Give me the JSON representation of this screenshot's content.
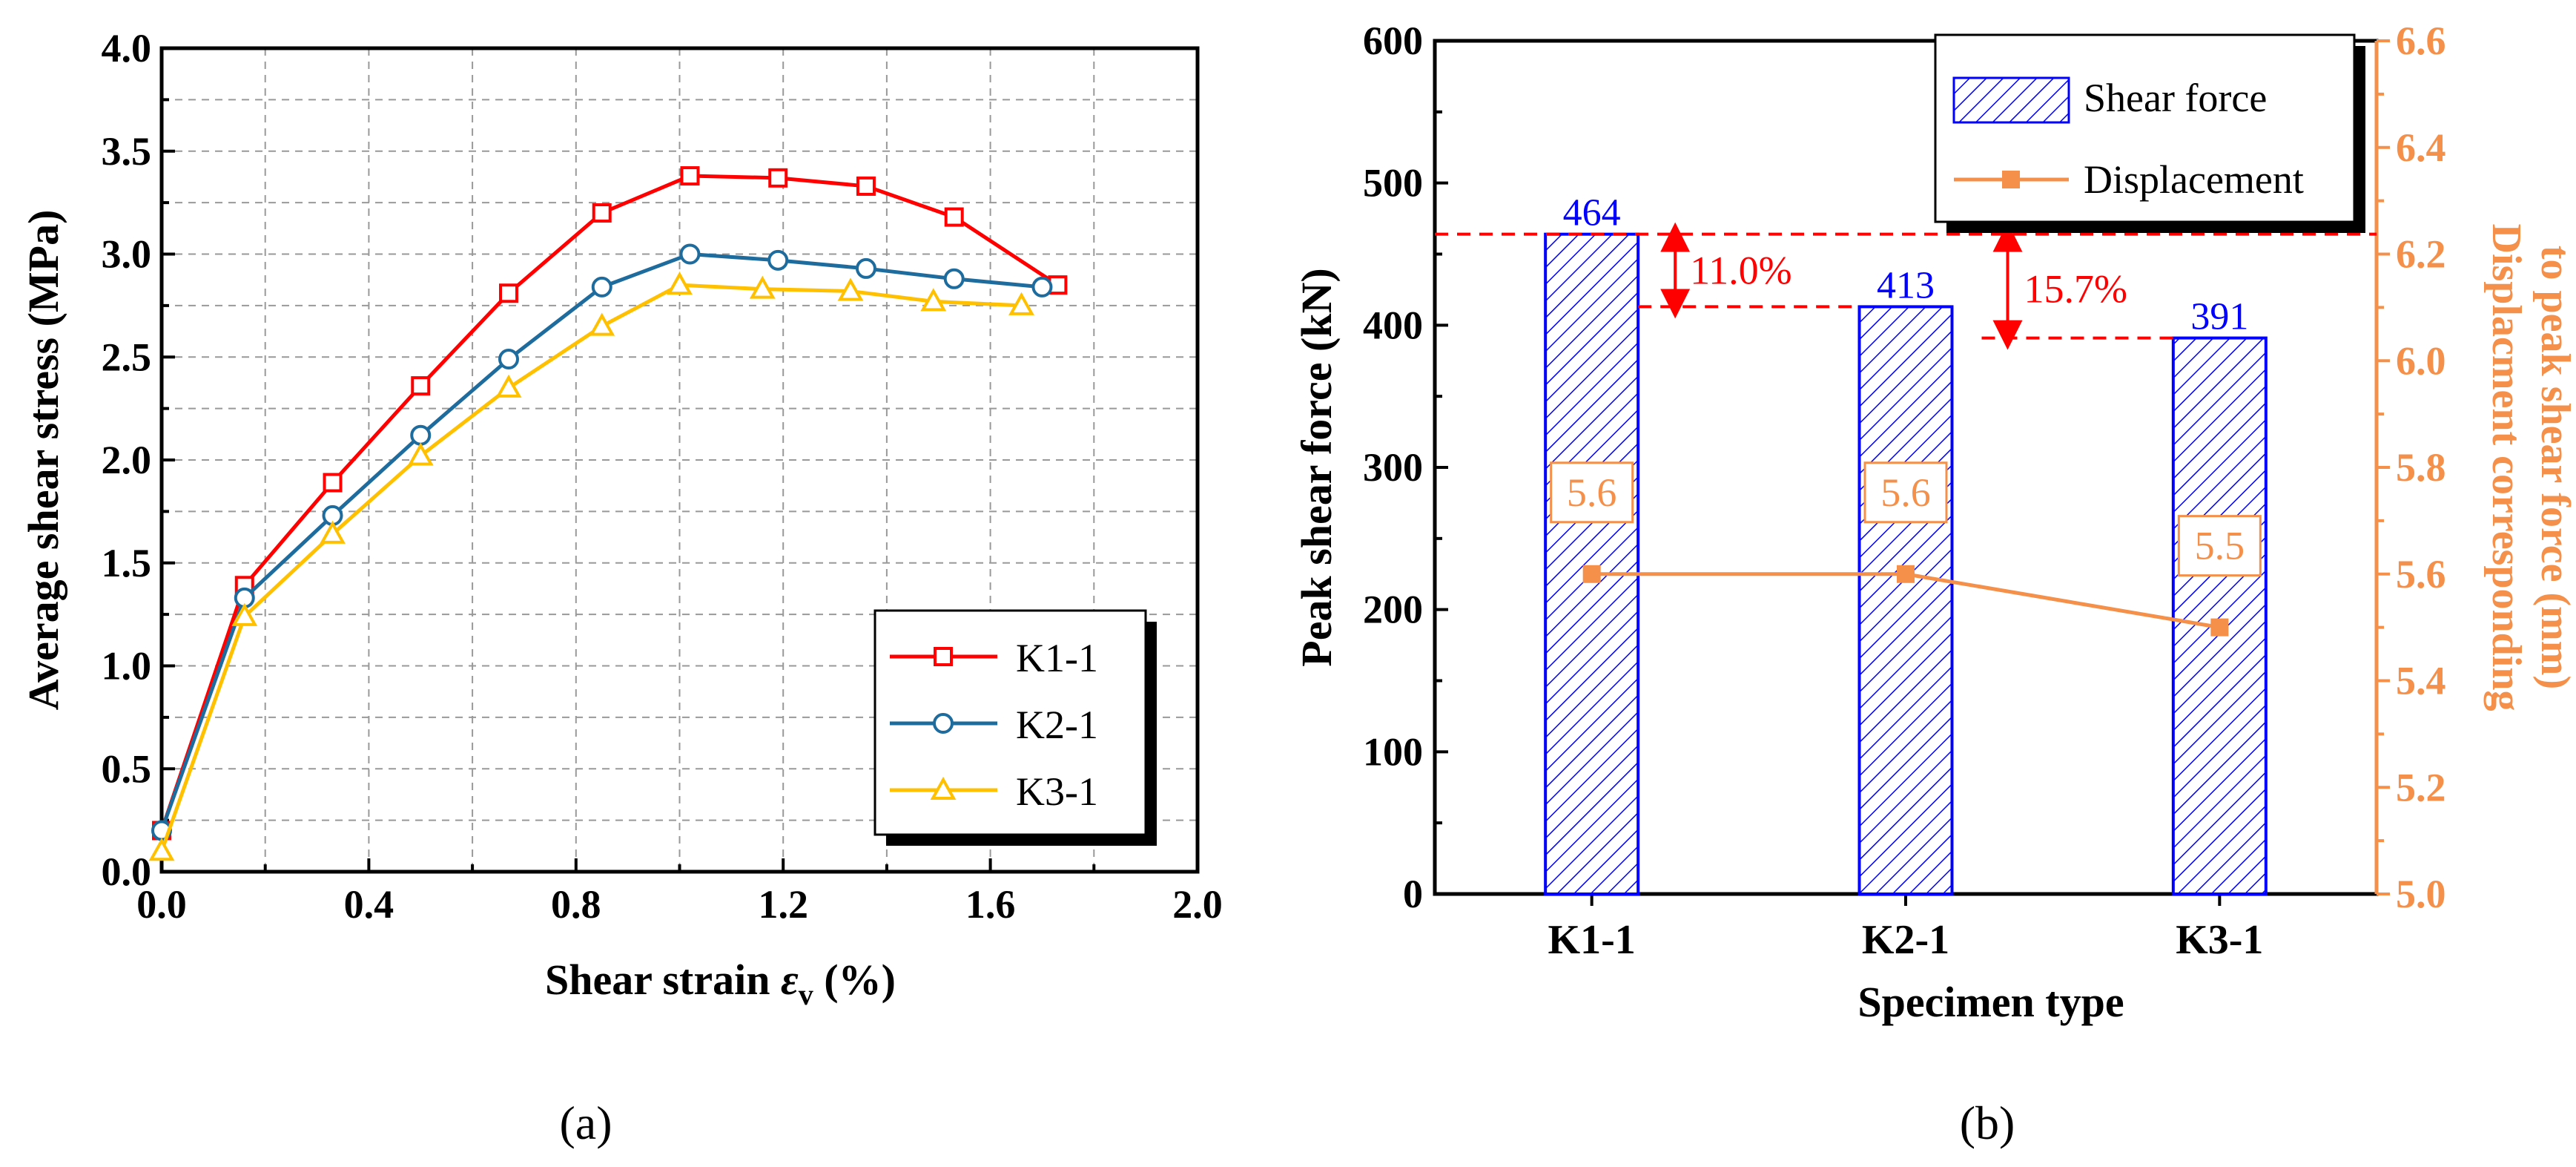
{
  "colors": {
    "k1": "#ff0000",
    "k2": "#1e6b9e",
    "k3": "#ffc000",
    "bar": "#0000ff",
    "disp": "#f4904a",
    "pct": "#ff0000",
    "grid": "#999999"
  },
  "chart_data": [
    {
      "panel": "(a)",
      "type": "line",
      "xlabel_prefix": "Shear strain ",
      "xlabel_symbol": "ε",
      "xlabel_sub": "v",
      "xlabel_suffix": " (%)",
      "ylabel": "Average shear stress (MPa)",
      "xlim": [
        0,
        2.0
      ],
      "ylim": [
        0,
        4.0
      ],
      "xticks": [
        "0.0",
        "0.4",
        "0.8",
        "1.2",
        "1.6",
        "2.0"
      ],
      "yticks": [
        "0.0",
        "0.5",
        "1.0",
        "1.5",
        "2.0",
        "2.5",
        "3.0",
        "3.5",
        "4.0"
      ],
      "grid": true,
      "legend_position": "bottom-right",
      "series": [
        {
          "name": "K1-1",
          "marker": "square",
          "x": [
            0,
            0.16,
            0.33,
            0.5,
            0.67,
            0.85,
            1.02,
            1.19,
            1.36,
            1.53,
            1.73
          ],
          "y": [
            0.2,
            1.39,
            1.89,
            2.36,
            2.81,
            3.2,
            3.38,
            3.37,
            3.33,
            3.18,
            2.85
          ]
        },
        {
          "name": "K2-1",
          "marker": "circle",
          "x": [
            0,
            0.16,
            0.33,
            0.5,
            0.67,
            0.85,
            1.02,
            1.19,
            1.36,
            1.53,
            1.7
          ],
          "y": [
            0.2,
            1.33,
            1.73,
            2.12,
            2.49,
            2.84,
            3.0,
            2.97,
            2.93,
            2.88,
            2.84
          ]
        },
        {
          "name": "K3-1",
          "marker": "triangle",
          "x": [
            0,
            0.16,
            0.33,
            0.5,
            0.67,
            0.85,
            1.0,
            1.16,
            1.33,
            1.49,
            1.66
          ],
          "y": [
            0.1,
            1.24,
            1.64,
            2.02,
            2.35,
            2.65,
            2.85,
            2.83,
            2.82,
            2.77,
            2.75
          ]
        }
      ]
    },
    {
      "panel": "(b)",
      "type": "bar",
      "categories": [
        "K1-1",
        "K2-1",
        "K3-1"
      ],
      "xlabel": "Specimen type",
      "ylabel": "Peak shear force (kN)",
      "ylabel_right_line1": "Displacment corresponding",
      "ylabel_right_line2": "to peak shear force (mm)",
      "ylim": [
        0,
        600
      ],
      "ylim_right": [
        5.0,
        6.6
      ],
      "yticks": [
        "0",
        "100",
        "200",
        "300",
        "400",
        "500",
        "600"
      ],
      "yticks_right": [
        "5.0",
        "5.2",
        "5.4",
        "5.6",
        "5.8",
        "6.0",
        "6.2",
        "6.4",
        "6.6"
      ],
      "series": [
        {
          "name": "Shear force",
          "kind": "bar",
          "values": [
            464,
            413,
            391
          ],
          "labels": [
            "464",
            "413",
            "391"
          ]
        },
        {
          "name": "Displacement",
          "kind": "line",
          "axis": "right",
          "values": [
            5.6,
            5.6,
            5.5
          ],
          "labels": [
            "5.6",
            "5.6",
            "5.5"
          ]
        }
      ],
      "annotations": [
        "11.0%",
        "15.7%"
      ]
    }
  ]
}
